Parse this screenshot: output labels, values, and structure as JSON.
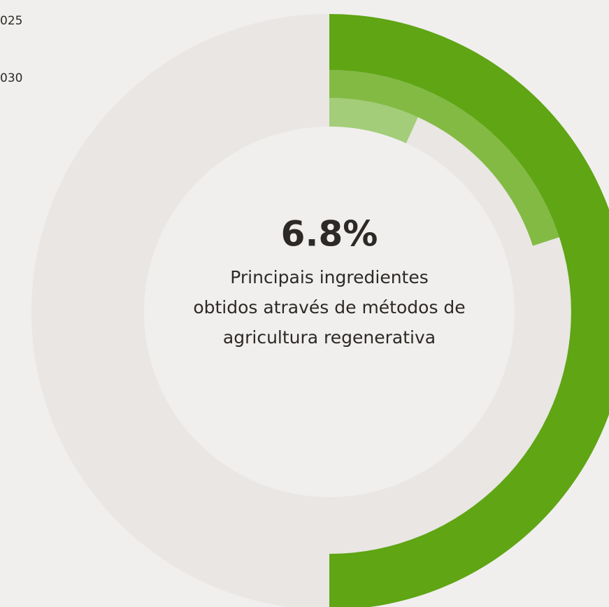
{
  "chart_data": {
    "type": "donut",
    "range": [
      0,
      100
    ],
    "track_color": "#e9e6e3",
    "series": [
      {
        "values": [
          6.8
        ],
        "value_labels": [
          "6.8%"
        ],
        "color": "#a3cd78"
      },
      {
        "name": "025",
        "values": [
          20
        ],
        "color": "#83ba44"
      },
      {
        "name": "030",
        "values": [
          50
        ],
        "color": "#5fa514"
      }
    ],
    "subtitle": [
      "Principais ingredientes",
      "obtidos através de métodos de",
      "agricultura regenerativa"
    ]
  }
}
